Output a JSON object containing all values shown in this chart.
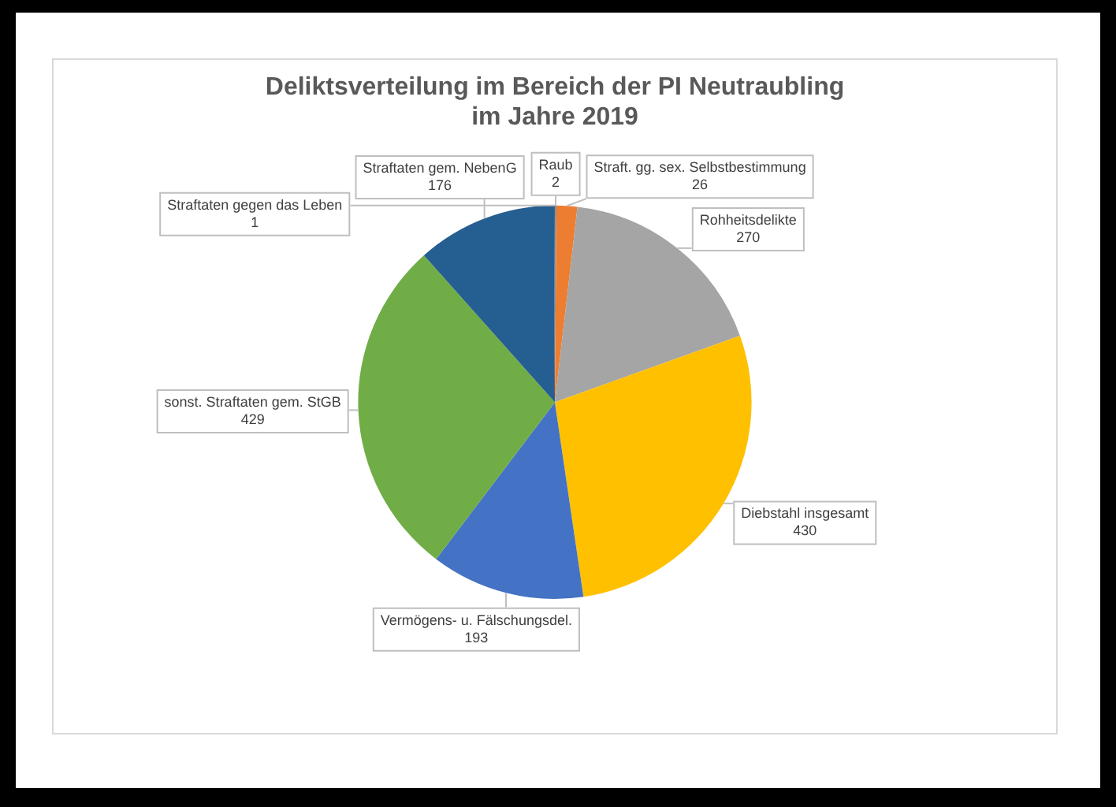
{
  "chart_data": {
    "type": "pie",
    "title": "Deliktsverteilung im Bereich der PI Neutraubling\nim Jahre 2019",
    "categories": [
      "Raub",
      "Straft. gg. sex. Selbstbestimmung",
      "Rohheitsdelikte",
      "Diebstahl insgesamt",
      "Vermögens- u. Fälschungsdel.",
      "sonst. Straftaten gem. StGB",
      "Straftaten gem. NebenG",
      "Straftaten gegen das Leben"
    ],
    "values": [
      2,
      26,
      270,
      430,
      193,
      429,
      176,
      1
    ],
    "colors": [
      "#5b9bd5",
      "#ed7d31",
      "#a5a5a5",
      "#ffc000",
      "#4472c4",
      "#70ad47",
      "#255e91",
      "#9e480e"
    ],
    "data_labels": true,
    "legend": false
  }
}
